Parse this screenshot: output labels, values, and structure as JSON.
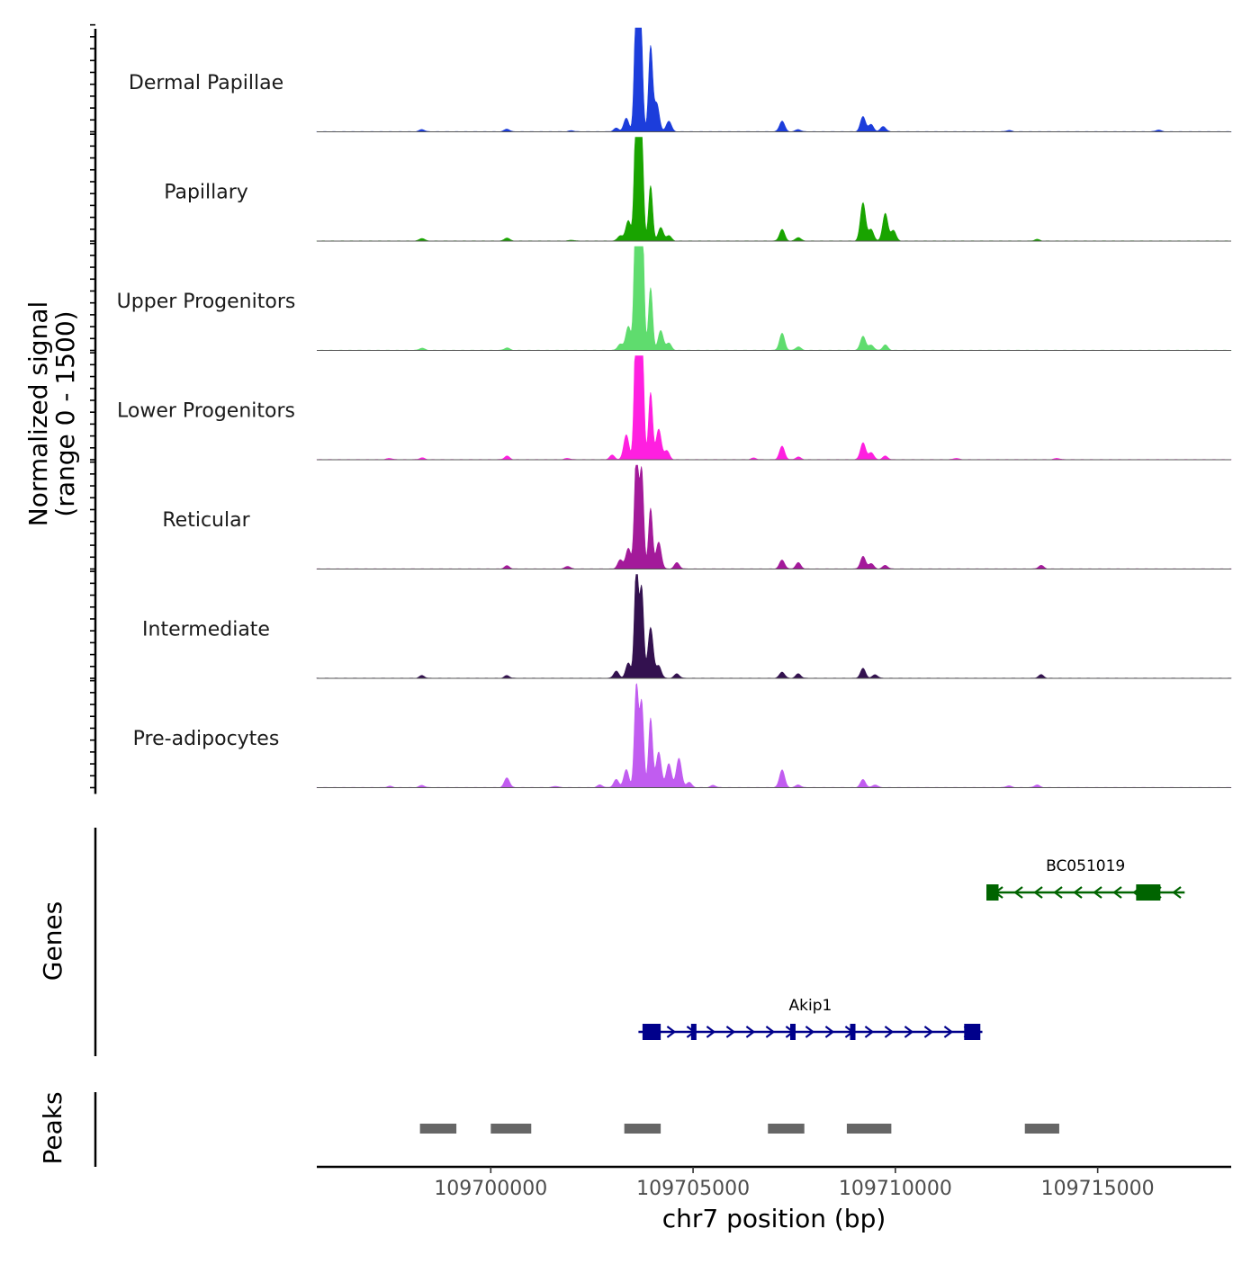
{
  "chart_data": {
    "type": "area",
    "title": "",
    "chromosome": "chr7",
    "xlabel": "chr7 position (bp)",
    "ylabel": "Normalized signal",
    "ylabel_range": "(range 0 - 1500)",
    "y_range": [
      0,
      1500
    ],
    "xlim": [
      109695700,
      109718300
    ],
    "x_ticks": [
      109700000,
      109705000,
      109710000,
      109715000
    ],
    "x_tick_labels": [
      "109700000",
      "109705000",
      "109710000",
      "109715000"
    ],
    "tracks": [
      {
        "name": "Dermal Papillae",
        "color": "#1c3ddb",
        "peaks": [
          [
            109698300,
            25
          ],
          [
            109700400,
            30
          ],
          [
            109702000,
            12
          ],
          [
            109703100,
            40
          ],
          [
            109703350,
            150
          ],
          [
            109703600,
            1480
          ],
          [
            109703700,
            1320
          ],
          [
            109703950,
            950
          ],
          [
            109704100,
            320
          ],
          [
            109704400,
            120
          ],
          [
            109707200,
            120
          ],
          [
            109707600,
            25
          ],
          [
            109709200,
            170
          ],
          [
            109709400,
            80
          ],
          [
            109709700,
            60
          ],
          [
            109712800,
            15
          ],
          [
            109716500,
            20
          ]
        ]
      },
      {
        "name": "Papillary",
        "color": "#19a400",
        "peaks": [
          [
            109698300,
            30
          ],
          [
            109700400,
            35
          ],
          [
            109702000,
            10
          ],
          [
            109703200,
            60
          ],
          [
            109703400,
            230
          ],
          [
            109703600,
            1550
          ],
          [
            109703720,
            1300
          ],
          [
            109703950,
            620
          ],
          [
            109704200,
            150
          ],
          [
            109704400,
            60
          ],
          [
            109707200,
            130
          ],
          [
            109707600,
            40
          ],
          [
            109709200,
            430
          ],
          [
            109709400,
            130
          ],
          [
            109709750,
            310
          ],
          [
            109709950,
            120
          ],
          [
            109713500,
            18
          ]
        ]
      },
      {
        "name": "Upper Progenitors",
        "color": "#5fdc6e",
        "peaks": [
          [
            109698300,
            25
          ],
          [
            109700400,
            28
          ],
          [
            109703200,
            70
          ],
          [
            109703400,
            270
          ],
          [
            109703600,
            1980
          ],
          [
            109703730,
            1750
          ],
          [
            109703950,
            700
          ],
          [
            109704200,
            220
          ],
          [
            109704400,
            80
          ],
          [
            109707200,
            190
          ],
          [
            109707600,
            40
          ],
          [
            109709200,
            160
          ],
          [
            109709400,
            60
          ],
          [
            109709750,
            60
          ]
        ]
      },
      {
        "name": "Lower Progenitors",
        "color": "#ff1fe0",
        "peaks": [
          [
            109697500,
            15
          ],
          [
            109698300,
            20
          ],
          [
            109700400,
            40
          ],
          [
            109701900,
            15
          ],
          [
            109703000,
            50
          ],
          [
            109703350,
            280
          ],
          [
            109703600,
            1700
          ],
          [
            109703730,
            1500
          ],
          [
            109703950,
            750
          ],
          [
            109704150,
            340
          ],
          [
            109704350,
            100
          ],
          [
            109706500,
            18
          ],
          [
            109707200,
            150
          ],
          [
            109707600,
            30
          ],
          [
            109709200,
            190
          ],
          [
            109709400,
            80
          ],
          [
            109709750,
            40
          ],
          [
            109711500,
            15
          ],
          [
            109714000,
            15
          ]
        ]
      },
      {
        "name": "Reticular",
        "color": "#a31a9a",
        "peaks": [
          [
            109700400,
            35
          ],
          [
            109701900,
            30
          ],
          [
            109703200,
            100
          ],
          [
            109703400,
            230
          ],
          [
            109703600,
            1300
          ],
          [
            109703730,
            1100
          ],
          [
            109703950,
            680
          ],
          [
            109704150,
            300
          ],
          [
            109704600,
            70
          ],
          [
            109707200,
            100
          ],
          [
            109707600,
            70
          ],
          [
            109709200,
            140
          ],
          [
            109709400,
            60
          ],
          [
            109709750,
            40
          ],
          [
            109713600,
            40
          ]
        ]
      },
      {
        "name": "Intermediate",
        "color": "#33114f",
        "peaks": [
          [
            109698300,
            30
          ],
          [
            109700400,
            30
          ],
          [
            109703100,
            80
          ],
          [
            109703400,
            170
          ],
          [
            109703600,
            1250
          ],
          [
            109703730,
            1000
          ],
          [
            109703950,
            570
          ],
          [
            109704150,
            140
          ],
          [
            109704600,
            50
          ],
          [
            109707200,
            70
          ],
          [
            109707600,
            50
          ],
          [
            109709200,
            110
          ],
          [
            109709500,
            40
          ],
          [
            109713600,
            40
          ]
        ]
      },
      {
        "name": "Pre-adipocytes",
        "color": "#c15cf0",
        "peaks": [
          [
            109697500,
            15
          ],
          [
            109698300,
            25
          ],
          [
            109700400,
            110
          ],
          [
            109701600,
            15
          ],
          [
            109702700,
            30
          ],
          [
            109703100,
            90
          ],
          [
            109703350,
            200
          ],
          [
            109703600,
            1150
          ],
          [
            109703730,
            950
          ],
          [
            109703950,
            780
          ],
          [
            109704150,
            400
          ],
          [
            109704400,
            270
          ],
          [
            109704650,
            330
          ],
          [
            109704900,
            60
          ],
          [
            109705500,
            25
          ],
          [
            109707200,
            200
          ],
          [
            109707600,
            30
          ],
          [
            109709200,
            90
          ],
          [
            109709500,
            30
          ],
          [
            109712800,
            20
          ],
          [
            109713500,
            30
          ]
        ]
      }
    ],
    "genes": [
      {
        "name": "BC051019",
        "strand": "-",
        "color": "#006400",
        "start": 109712250,
        "end": 109717150,
        "exons": [
          [
            109712250,
            109712550
          ],
          [
            109715950,
            109716550
          ]
        ]
      },
      {
        "name": "Akip1",
        "strand": "+",
        "color": "#00008b",
        "start": 109703650,
        "end": 109712150,
        "exons": [
          [
            109703750,
            109704200
          ],
          [
            109704950,
            109705020
          ],
          [
            109707400,
            109707500
          ],
          [
            109708880,
            109709000
          ],
          [
            109711700,
            109712100
          ]
        ]
      }
    ],
    "peaks": [
      [
        109698250,
        109699150
      ],
      [
        109700000,
        109701000
      ],
      [
        109703300,
        109704200
      ],
      [
        109706850,
        109707750
      ],
      [
        109708800,
        109709900
      ],
      [
        109713200,
        109714050
      ]
    ],
    "panel_labels": {
      "genes": "Genes",
      "peaks": "Peaks"
    }
  }
}
